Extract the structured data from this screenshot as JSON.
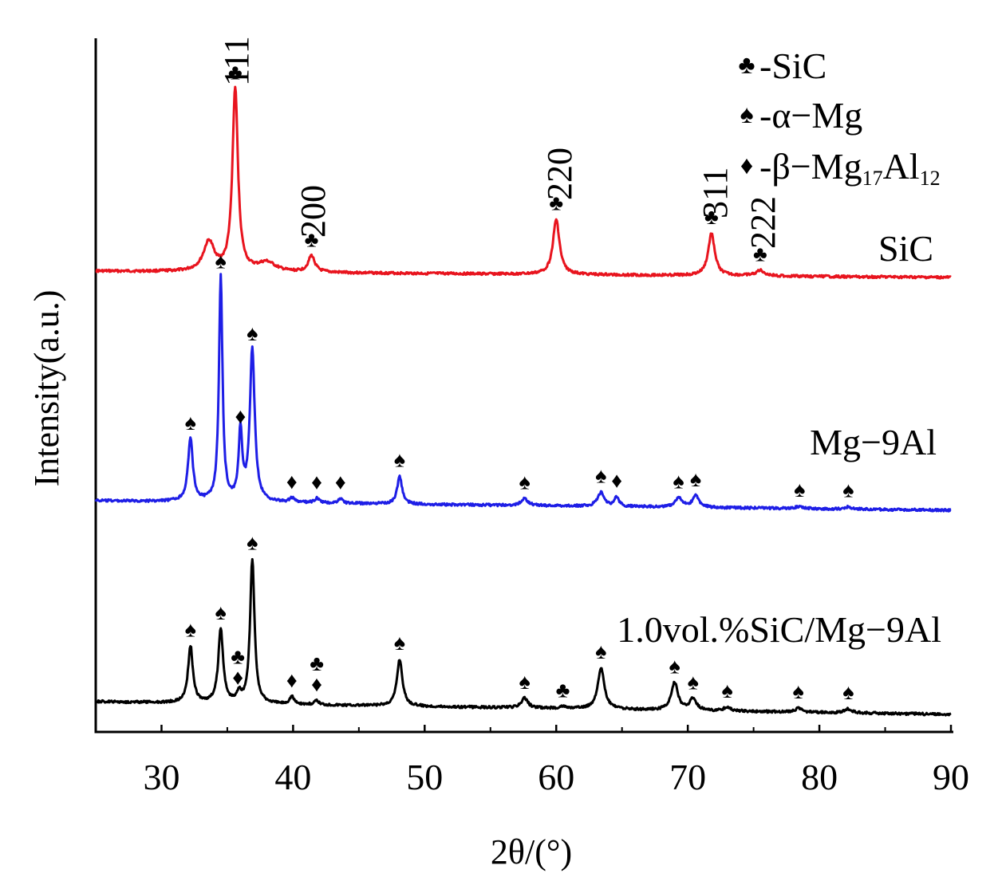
{
  "chart_data": {
    "type": "line",
    "xlabel": "2θ/(°)",
    "ylabel": "Intensity(a.u.)",
    "xlim": [
      25,
      90
    ],
    "x_ticks": [
      30,
      40,
      50,
      60,
      70,
      80,
      90
    ],
    "y_ticks_shown": false,
    "grid": false,
    "legend_position": "top-right",
    "legend": [
      {
        "symbol": "club",
        "glyph": "♣",
        "text": "-SiC"
      },
      {
        "symbol": "spade",
        "glyph": "♠",
        "text": "-α−Mg"
      },
      {
        "symbol": "diamond",
        "glyph": "♦",
        "text": "-β−Mg",
        "sub1": "17",
        "mid": "Al",
        "sub2": "12"
      }
    ],
    "series": [
      {
        "name": "SiC",
        "color": "#e8141e",
        "peaks": [
          {
            "x": 33.6,
            "h": 0.16,
            "w": 0.5
          },
          {
            "x": 35.6,
            "h": 1.0,
            "w": 0.25
          },
          {
            "x": 38.0,
            "h": 0.05,
            "w": 0.8
          },
          {
            "x": 41.4,
            "h": 0.09,
            "w": 0.3
          },
          {
            "x": 60.0,
            "h": 0.3,
            "w": 0.3
          },
          {
            "x": 71.8,
            "h": 0.23,
            "w": 0.3
          },
          {
            "x": 75.5,
            "h": 0.03,
            "w": 0.4
          }
        ],
        "markers": [
          {
            "x": 35.6,
            "h": 1.0,
            "symbol": "club"
          },
          {
            "x": 41.4,
            "h": 0.09,
            "symbol": "club"
          },
          {
            "x": 60.0,
            "h": 0.3,
            "symbol": "club"
          },
          {
            "x": 71.8,
            "h": 0.23,
            "symbol": "club"
          },
          {
            "x": 75.5,
            "h": 0.03,
            "symbol": "club"
          }
        ],
        "hkl": [
          {
            "x": 35.6,
            "text": "111"
          },
          {
            "x": 41.4,
            "text": "200"
          },
          {
            "x": 60.0,
            "text": "220"
          },
          {
            "x": 71.8,
            "text": "311"
          },
          {
            "x": 75.5,
            "text": "222"
          }
        ]
      },
      {
        "name": "Mg−9Al",
        "color": "#1e1ee6",
        "peaks": [
          {
            "x": 32.2,
            "h": 0.27,
            "w": 0.22
          },
          {
            "x": 34.5,
            "h": 0.97,
            "w": 0.16
          },
          {
            "x": 36.0,
            "h": 0.3,
            "w": 0.16
          },
          {
            "x": 36.9,
            "h": 0.66,
            "w": 0.22
          },
          {
            "x": 39.9,
            "h": 0.02,
            "w": 0.2
          },
          {
            "x": 41.8,
            "h": 0.02,
            "w": 0.2
          },
          {
            "x": 43.6,
            "h": 0.02,
            "w": 0.2
          },
          {
            "x": 48.1,
            "h": 0.12,
            "w": 0.22
          },
          {
            "x": 57.6,
            "h": 0.03,
            "w": 0.3
          },
          {
            "x": 63.4,
            "h": 0.06,
            "w": 0.3
          },
          {
            "x": 64.6,
            "h": 0.04,
            "w": 0.2
          },
          {
            "x": 69.3,
            "h": 0.04,
            "w": 0.3
          },
          {
            "x": 70.6,
            "h": 0.05,
            "w": 0.3
          },
          {
            "x": 78.5,
            "h": 0.01,
            "w": 0.3
          },
          {
            "x": 82.2,
            "h": 0.01,
            "w": 0.3
          }
        ],
        "markers": [
          {
            "x": 32.2,
            "h": 0.27,
            "symbol": "spade"
          },
          {
            "x": 34.5,
            "h": 0.97,
            "symbol": "spade"
          },
          {
            "x": 36.0,
            "h": 0.3,
            "symbol": "diamond"
          },
          {
            "x": 36.9,
            "h": 0.66,
            "symbol": "spade"
          },
          {
            "x": 39.9,
            "h": 0.02,
            "symbol": "diamond"
          },
          {
            "x": 41.8,
            "h": 0.02,
            "symbol": "diamond"
          },
          {
            "x": 43.6,
            "h": 0.02,
            "symbol": "diamond"
          },
          {
            "x": 48.1,
            "h": 0.12,
            "symbol": "spade"
          },
          {
            "x": 57.6,
            "h": 0.03,
            "symbol": "spade"
          },
          {
            "x": 63.4,
            "h": 0.06,
            "symbol": "spade"
          },
          {
            "x": 64.6,
            "h": 0.04,
            "symbol": "diamond"
          },
          {
            "x": 69.3,
            "h": 0.04,
            "symbol": "spade"
          },
          {
            "x": 70.6,
            "h": 0.05,
            "symbol": "spade"
          },
          {
            "x": 78.5,
            "h": 0.01,
            "symbol": "spade"
          },
          {
            "x": 82.2,
            "h": 0.01,
            "symbol": "spade"
          }
        ]
      },
      {
        "name": "1.0vol.%SiC/Mg−9Al",
        "color": "#000000",
        "peaks": [
          {
            "x": 32.2,
            "h": 0.29,
            "w": 0.22
          },
          {
            "x": 34.5,
            "h": 0.38,
            "w": 0.22
          },
          {
            "x": 35.9,
            "h": 0.05,
            "w": 0.18
          },
          {
            "x": 36.9,
            "h": 0.74,
            "w": 0.2
          },
          {
            "x": 39.9,
            "h": 0.04,
            "w": 0.2
          },
          {
            "x": 41.8,
            "h": 0.02,
            "w": 0.2
          },
          {
            "x": 48.1,
            "h": 0.24,
            "w": 0.25
          },
          {
            "x": 57.6,
            "h": 0.05,
            "w": 0.3
          },
          {
            "x": 60.5,
            "h": 0.01,
            "w": 0.3
          },
          {
            "x": 63.4,
            "h": 0.21,
            "w": 0.3
          },
          {
            "x": 69.0,
            "h": 0.14,
            "w": 0.3
          },
          {
            "x": 70.4,
            "h": 0.06,
            "w": 0.3
          },
          {
            "x": 73.0,
            "h": 0.02,
            "w": 0.3
          },
          {
            "x": 78.4,
            "h": 0.02,
            "w": 0.3
          },
          {
            "x": 82.2,
            "h": 0.02,
            "w": 0.3
          }
        ],
        "markers": [
          {
            "x": 32.2,
            "h": 0.29,
            "symbol": "spade"
          },
          {
            "x": 34.5,
            "h": 0.38,
            "symbol": "spade"
          },
          {
            "x": 35.8,
            "h": 0.05,
            "symbol": "diamond"
          },
          {
            "x": 35.8,
            "h": 0.05,
            "symbol": "club",
            "stack": 1
          },
          {
            "x": 36.9,
            "h": 0.74,
            "symbol": "spade"
          },
          {
            "x": 39.9,
            "h": 0.04,
            "symbol": "diamond"
          },
          {
            "x": 41.8,
            "h": 0.02,
            "symbol": "diamond"
          },
          {
            "x": 41.8,
            "h": 0.02,
            "symbol": "club",
            "stack": 1
          },
          {
            "x": 48.1,
            "h": 0.24,
            "symbol": "spade"
          },
          {
            "x": 57.6,
            "h": 0.05,
            "symbol": "spade"
          },
          {
            "x": 60.5,
            "h": 0.01,
            "symbol": "club"
          },
          {
            "x": 63.4,
            "h": 0.21,
            "symbol": "spade"
          },
          {
            "x": 69.0,
            "h": 0.14,
            "symbol": "spade"
          },
          {
            "x": 70.4,
            "h": 0.06,
            "symbol": "spade"
          },
          {
            "x": 73.0,
            "h": 0.02,
            "symbol": "spade"
          },
          {
            "x": 78.4,
            "h": 0.02,
            "symbol": "spade"
          },
          {
            "x": 82.2,
            "h": 0.02,
            "symbol": "spade"
          }
        ]
      }
    ]
  }
}
